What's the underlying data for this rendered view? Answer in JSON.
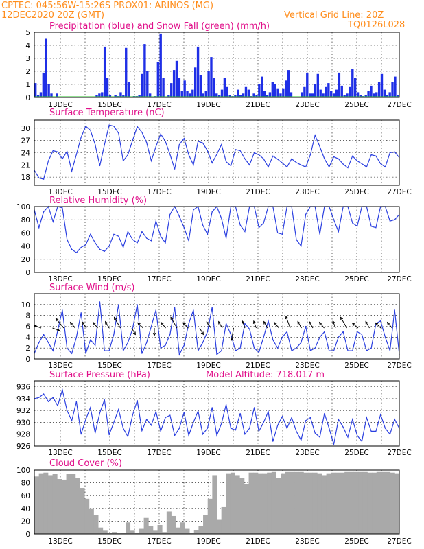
{
  "header": {
    "line1": "CPTEC:   045:56W-15:26S   PROX01: ARINOS (MG)",
    "line2": "12DEC2020 20Z (GMT)",
    "grid_note": "Vertical Grid Line: 20Z",
    "code": "TQ0126L028"
  },
  "x_ticks": [
    "13DEC",
    "15DEC",
    "17DEC",
    "19DEC",
    "21DEC",
    "23DEC",
    "25DEC",
    "27DEC"
  ],
  "colors": {
    "line": "#2a3fe0",
    "bar": "#1f2fe6",
    "snow": "#22bb22",
    "cloud": "#a9a9a9",
    "title": "#e0108a",
    "header": "#ff8c1a"
  },
  "chart_data": [
    {
      "type": "bar",
      "title": "Precipitation (blue) and Snow Fall (green) (mm/h)",
      "ylim": [
        0,
        5
      ],
      "yticks": [
        "0",
        "1",
        "2",
        "3",
        "4",
        "5"
      ],
      "series": [
        {
          "name": "Precipitation",
          "values": [
            1.1,
            0.2,
            0.4,
            1.9,
            4.5,
            1.0,
            0.3,
            0,
            0.3,
            0,
            0,
            0,
            0,
            0,
            0,
            0,
            0,
            0,
            0,
            0,
            0,
            0,
            0,
            0.2,
            0.3,
            0.4,
            3.9,
            1.5,
            0.2,
            0,
            0.2,
            0.1,
            0.4,
            0.2,
            3.8,
            1.2,
            0,
            0.1,
            0.1,
            0.2,
            1.8,
            4.1,
            2.0,
            0.3,
            0,
            0.1,
            2.7,
            4.9,
            1.5,
            0,
            0.2,
            1.1,
            2.1,
            2.8,
            1.5,
            0.5,
            1.3,
            0.5,
            0.3,
            0.6,
            2.3,
            3.9,
            1.7,
            0.3,
            0.5,
            2.0,
            3.1,
            1.5,
            0.3,
            0.2,
            0.6,
            1.5,
            0.8,
            0.2,
            0.1,
            0.2,
            0.6,
            0.2,
            0.3,
            0.8,
            0.6,
            0.1,
            0.3,
            0.2,
            1.0,
            1.6,
            0.5,
            0.2,
            0.4,
            1.2,
            1.0,
            0.7,
            0.3,
            0.7,
            1.3,
            2.1,
            0.4,
            0,
            0,
            0,
            0.4,
            0.8,
            1.9,
            0.3,
            0.3,
            1.0,
            1.8,
            0.6,
            0.3,
            0.8,
            1.1,
            0.5,
            0.3,
            0.6,
            1.9,
            0.9,
            0.2,
            0.3,
            0.8,
            2.2,
            1.5,
            0.4,
            0.2,
            0.1,
            0.2,
            0.5,
            0.9,
            0.3,
            0.4,
            1.2,
            1.8,
            0.6,
            0.2,
            0.4,
            1.2,
            1.6,
            0.2
          ]
        },
        {
          "name": "Snow Fall",
          "values": [
            0
          ]
        }
      ]
    },
    {
      "type": "line",
      "title": "Surface Temperature (nC)",
      "ylim": [
        16,
        32
      ],
      "yticks": [
        "18",
        "21",
        "24",
        "27",
        "30"
      ],
      "series": [
        {
          "name": "Temperature",
          "values": [
            19.7,
            17.8,
            17.5,
            22.0,
            24.5,
            24.2,
            22.5,
            24.3,
            19.5,
            23.6,
            27.8,
            30.5,
            29.5,
            26.0,
            20.8,
            26.0,
            30.8,
            30.5,
            28.8,
            22.0,
            23.5,
            27.0,
            30.4,
            29.0,
            26.5,
            22.0,
            25.5,
            28.6,
            26.8,
            23.6,
            20.0,
            26.0,
            27.5,
            23.5,
            21.0,
            26.8,
            26.4,
            24.5,
            21.5,
            23.6,
            26.0,
            21.8,
            20.8,
            24.8,
            24.5,
            22.5,
            21.0,
            24.0,
            23.5,
            22.5,
            20.5,
            23.2,
            22.4,
            21.5,
            20.5,
            22.5,
            21.6,
            21.0,
            20.5,
            23.5,
            28.3,
            25.5,
            22.5,
            20.5,
            23.0,
            22.5,
            21.2,
            20.3,
            23.2,
            22.0,
            21.3,
            20.5,
            23.5,
            23.2,
            21.3,
            20.5,
            24.0,
            24.2,
            22.8
          ]
        }
      ]
    },
    {
      "type": "line",
      "title": "Relative Humidity (%)",
      "ylim": [
        0,
        100
      ],
      "yticks": [
        "0",
        "20",
        "40",
        "60",
        "80",
        "100"
      ],
      "series": [
        {
          "name": "Relative Humidity",
          "values": [
            95,
            68,
            92,
            100,
            77,
            100,
            98,
            50,
            35,
            30,
            38,
            42,
            58,
            45,
            35,
            32,
            40,
            58,
            55,
            38,
            62,
            50,
            45,
            62,
            52,
            48,
            78,
            55,
            45,
            88,
            100,
            85,
            68,
            48,
            95,
            100,
            72,
            58,
            92,
            100,
            82,
            52,
            100,
            100,
            72,
            62,
            100,
            100,
            68,
            75,
            100,
            100,
            60,
            58,
            100,
            100,
            50,
            40,
            88,
            100,
            100,
            58,
            100,
            100,
            80,
            62,
            100,
            100,
            75,
            70,
            100,
            100,
            70,
            68,
            100,
            100,
            78,
            80,
            88
          ]
        }
      ]
    },
    {
      "type": "line",
      "title": "Surface Wind (m/s)",
      "ylim": [
        0,
        12
      ],
      "yticks": [
        "0",
        "2",
        "4",
        "6",
        "8",
        "10"
      ],
      "series": [
        {
          "name": "Wind Speed",
          "values": [
            1.0,
            3.0,
            4.5,
            3.0,
            1.5,
            5.2,
            9.0,
            2.0,
            1.0,
            4.0,
            8.5,
            1.0,
            3.5,
            2.5,
            10.5,
            1.5,
            1.5,
            4.5,
            10.0,
            1.5,
            3.0,
            5.5,
            10.0,
            1.0,
            3.0,
            6.0,
            9.0,
            2.0,
            2.5,
            4.5,
            9.5,
            0.8,
            2.5,
            6.5,
            9.0,
            1.5,
            3.0,
            5.0,
            9.5,
            0.8,
            1.5,
            6.5,
            4.5,
            1.5,
            2.0,
            6.5,
            5.5,
            2.0,
            1.2,
            4.0,
            7.0,
            3.5,
            2.0,
            4.0,
            5.0,
            1.5,
            2.0,
            3.0,
            6.0,
            1.5,
            2.0,
            4.0,
            5.0,
            1.5,
            1.5,
            4.0,
            5.0,
            1.5,
            1.5,
            5.0,
            4.5,
            1.5,
            2.0,
            6.5,
            7.0,
            4.0,
            1.5,
            9.0,
            0.8
          ]
        }
      ]
    },
    {
      "type": "line",
      "title": "Surface Pressure (hPa)",
      "annotation": "Model Altitude: 718.017  m",
      "ylim": [
        926,
        937
      ],
      "yticks": [
        "926",
        "928",
        "930",
        "932",
        "934",
        "936"
      ],
      "series": [
        {
          "name": "Pressure",
          "values": [
            934.0,
            934.2,
            934.8,
            933.5,
            934.2,
            932.8,
            935.5,
            932.0,
            930.3,
            933.5,
            928.0,
            930.5,
            932.5,
            928.2,
            931.6,
            933.8,
            927.9,
            930.0,
            932.2,
            929.0,
            927.6,
            931.2,
            933.7,
            928.6,
            930.5,
            929.5,
            931.8,
            928.5,
            930.8,
            931.2,
            927.8,
            929.0,
            931.7,
            927.8,
            930.0,
            931.9,
            928.0,
            929.0,
            932.5,
            927.8,
            929.8,
            933.0,
            929.0,
            928.7,
            931.5,
            928.0,
            929.0,
            932.5,
            928.5,
            930.0,
            931.8,
            926.8,
            929.5,
            931.0,
            929.0,
            930.8,
            928.5,
            927.0,
            930.3,
            930.8,
            928.2,
            927.5,
            931.5,
            929.0,
            926.3,
            930.5,
            929.2,
            927.5,
            930.5,
            927.8,
            926.8,
            930.8,
            928.5,
            928.5,
            931.3,
            929.0,
            928.0,
            930.5,
            929.0
          ]
        }
      ]
    },
    {
      "type": "area",
      "title": "Cloud Cover (%)",
      "ylim": [
        0,
        100
      ],
      "yticks": [
        "0",
        "20",
        "40",
        "60",
        "80",
        "100"
      ],
      "series": [
        {
          "name": "Cloud Cover",
          "values": [
            90,
            95,
            96,
            92,
            94,
            86,
            85,
            94,
            94,
            88,
            72,
            55,
            40,
            30,
            10,
            5,
            2,
            3,
            1,
            2,
            18,
            5,
            2,
            8,
            25,
            12,
            5,
            14,
            3,
            35,
            28,
            10,
            18,
            8,
            2,
            6,
            12,
            30,
            55,
            92,
            22,
            42,
            95,
            96,
            92,
            88,
            78,
            96,
            96,
            95,
            95,
            96,
            97,
            88,
            95,
            97,
            97,
            97,
            97,
            96,
            96,
            96,
            95,
            92,
            95,
            96,
            96,
            96,
            97,
            97,
            97,
            97,
            97,
            96,
            96,
            97,
            97,
            97,
            96,
            95
          ]
        }
      ]
    }
  ]
}
